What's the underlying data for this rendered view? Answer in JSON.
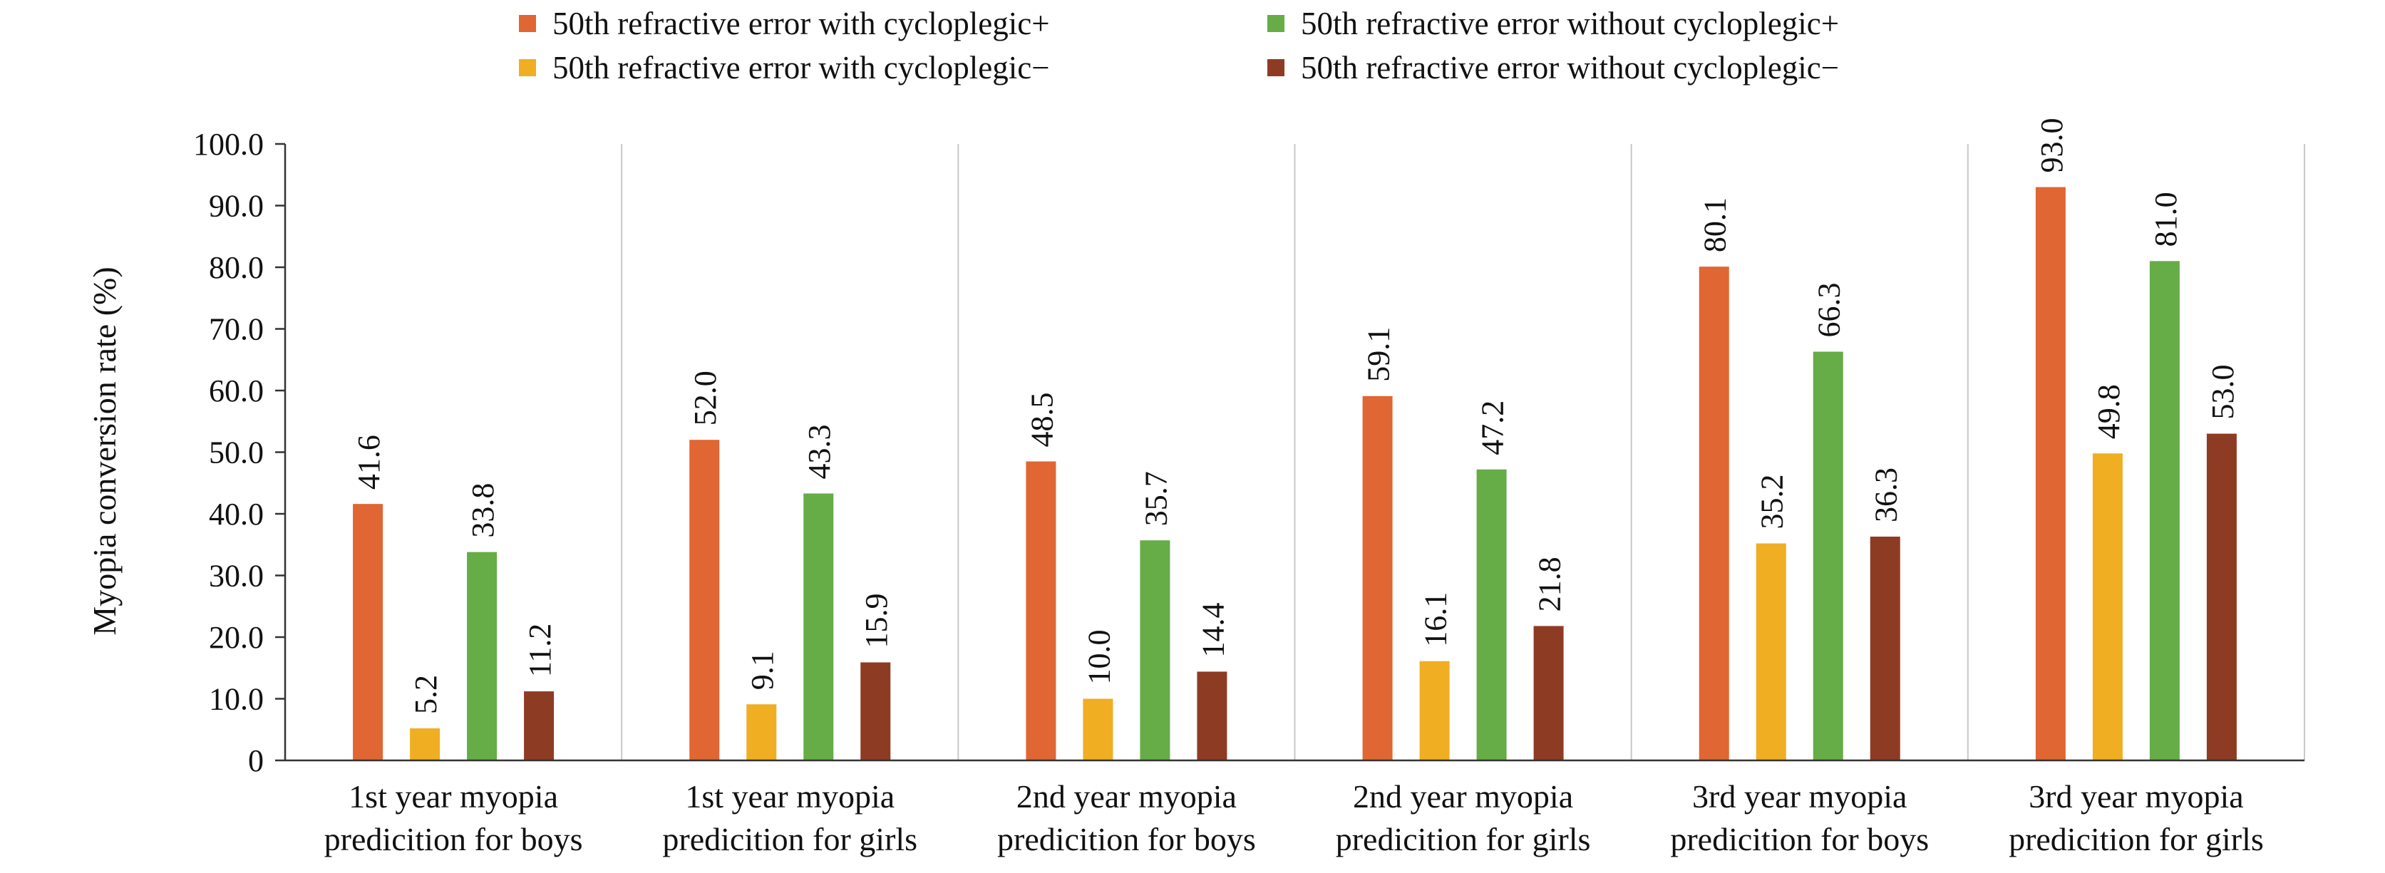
{
  "chart_data": {
    "type": "bar",
    "title": "",
    "xlabel": "",
    "ylabel": "Myopia conversion rate (%)",
    "ylim": [
      0,
      100
    ],
    "yticks": [
      "0",
      "10.0",
      "20.0",
      "30.0",
      "40.0",
      "50.0",
      "60.0",
      "70.0",
      "80.0",
      "90.0",
      "100.0"
    ],
    "grid": false,
    "legend_position": "top",
    "categories": [
      [
        "1st year myopia",
        "predicition for boys"
      ],
      [
        "1st year myopia",
        "predicition for girls"
      ],
      [
        "2nd year myopia",
        "predicition for boys"
      ],
      [
        "2nd year myopia",
        "predicition for girls"
      ],
      [
        "3rd year myopia",
        "predicition for boys"
      ],
      [
        "3rd year myopia",
        "predicition for girls"
      ]
    ],
    "series": [
      {
        "name": "50th refractive error with cycloplegic+",
        "color": "#e06633",
        "values": [
          41.6,
          52.0,
          48.5,
          59.1,
          80.1,
          93.0
        ],
        "labels": [
          "41.6",
          "52.0",
          "48.5",
          "59.1",
          "80.1",
          "93.0"
        ]
      },
      {
        "name": "50th refractive error with cycloplegic−",
        "color": "#f0ae22",
        "values": [
          5.2,
          9.1,
          10.0,
          16.1,
          35.2,
          49.8
        ],
        "labels": [
          "5.2",
          "9.1",
          "10.0",
          "16.1",
          "35.2",
          "49.8"
        ]
      },
      {
        "name": "50th refractive error without cycloplegic+",
        "color": "#66ac47",
        "values": [
          33.8,
          43.3,
          35.7,
          47.2,
          66.3,
          81.0
        ],
        "labels": [
          "33.8",
          "43.3",
          "35.7",
          "47.2",
          "66.3",
          "81.0"
        ]
      },
      {
        "name": "50th refractive error without cycloplegic−",
        "color": "#8e3b24",
        "values": [
          11.2,
          15.9,
          14.4,
          21.8,
          36.3,
          53.0
        ],
        "labels": [
          "11.2",
          "15.9",
          "14.4",
          "21.8",
          "36.3",
          "53.0"
        ]
      }
    ],
    "legend_order": [
      0,
      2,
      1,
      3
    ]
  }
}
